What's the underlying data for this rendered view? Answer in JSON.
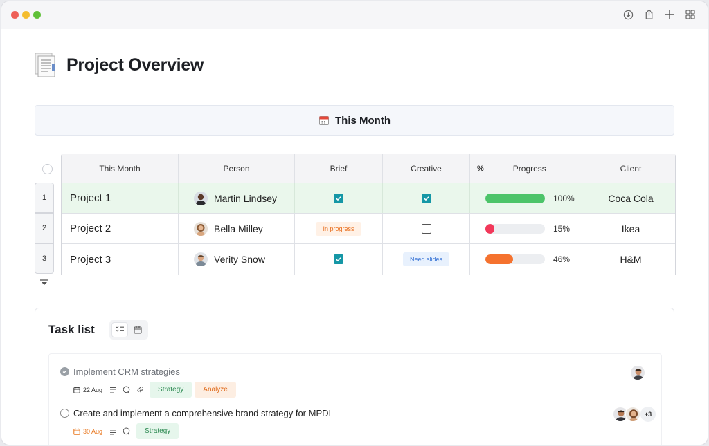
{
  "page": {
    "title": "Project Overview"
  },
  "banner": {
    "label": "This Month"
  },
  "table": {
    "headers": {
      "name": "This Month",
      "person": "Person",
      "brief": "Brief",
      "creative": "Creative",
      "progress_prefix": "%",
      "progress": "Progress",
      "client": "Client"
    },
    "rows": [
      {
        "num": "1",
        "name": "Project 1",
        "person": "Martin Lindsey",
        "brief": "checked",
        "creative": "checked",
        "progress": 100,
        "progress_label": "100%",
        "progress_color": "#4cc469",
        "client": "Coca Cola"
      },
      {
        "num": "2",
        "name": "Project 2",
        "person": "Bella Milley",
        "brief_label": "In progress",
        "creative": "unchecked",
        "progress": 15,
        "progress_label": "15%",
        "progress_color": "#f2385a",
        "client": "Ikea"
      },
      {
        "num": "3",
        "name": "Project 3",
        "person": "Verity Snow",
        "brief": "checked",
        "creative_label": "Need slides",
        "progress": 46,
        "progress_label": "46%",
        "progress_color": "#f5722e",
        "client": "H&M"
      }
    ]
  },
  "tasks": {
    "title": "Task list",
    "items": [
      {
        "name": "Implement CRM strategies",
        "status": "done",
        "date": "22 Aug",
        "tags": [
          "Strategy",
          "Analyze"
        ]
      },
      {
        "name": "Create and implement a comprehensive brand strategy for MPDI",
        "status": "open",
        "date": "30 Aug",
        "tags": [
          "Strategy"
        ],
        "extra_assignees": "+3"
      }
    ]
  },
  "colors": {
    "accent_teal": "#1597a6",
    "active_row": "#eaf7ec"
  }
}
